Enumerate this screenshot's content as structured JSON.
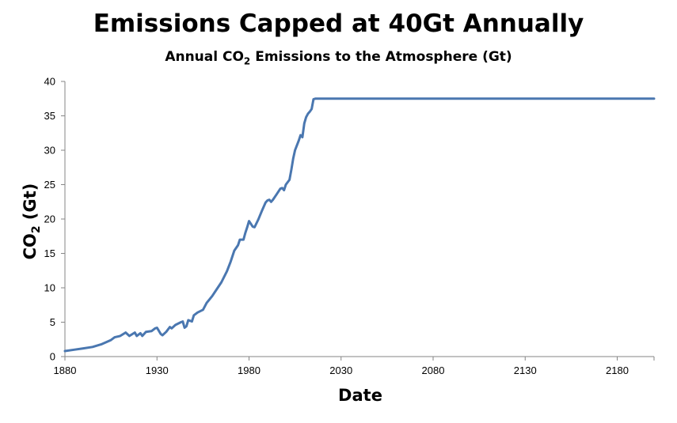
{
  "chart_data": {
    "type": "line",
    "title": "Emissions Capped at 40Gt Annually",
    "subtitle": {
      "main": "Annual CO",
      "sub": "2",
      "rest": " Emissions to the Atmosphere (Gt)"
    },
    "xlabel": "Date",
    "ylabel": {
      "main": "CO",
      "sub": "2",
      "rest": " (Gt)"
    },
    "xlim": [
      1880,
      2200
    ],
    "ylim": [
      0,
      40
    ],
    "x_ticks": [
      1880,
      1930,
      1980,
      2030,
      2080,
      2130,
      2180
    ],
    "y_ticks": [
      0,
      5,
      10,
      15,
      20,
      25,
      30,
      35,
      40
    ],
    "grid": false,
    "legend": "none",
    "series": [
      {
        "color": "#4a77b0",
        "points": [
          [
            1880,
            0.8
          ],
          [
            1885,
            1.0
          ],
          [
            1890,
            1.2
          ],
          [
            1895,
            1.4
          ],
          [
            1900,
            1.8
          ],
          [
            1905,
            2.4
          ],
          [
            1907,
            2.8
          ],
          [
            1910,
            3.0
          ],
          [
            1913,
            3.5
          ],
          [
            1915,
            3.0
          ],
          [
            1918,
            3.5
          ],
          [
            1919,
            3.0
          ],
          [
            1921,
            3.4
          ],
          [
            1922,
            3.0
          ],
          [
            1924,
            3.6
          ],
          [
            1927,
            3.7
          ],
          [
            1929,
            4.1
          ],
          [
            1930,
            4.2
          ],
          [
            1932,
            3.3
          ],
          [
            1933,
            3.1
          ],
          [
            1935,
            3.6
          ],
          [
            1937,
            4.3
          ],
          [
            1938,
            4.1
          ],
          [
            1940,
            4.6
          ],
          [
            1943,
            5.0
          ],
          [
            1944,
            5.1
          ],
          [
            1945,
            4.2
          ],
          [
            1946,
            4.4
          ],
          [
            1947,
            5.3
          ],
          [
            1949,
            5.1
          ],
          [
            1950,
            6.0
          ],
          [
            1952,
            6.4
          ],
          [
            1955,
            6.8
          ],
          [
            1957,
            7.8
          ],
          [
            1960,
            8.8
          ],
          [
            1962,
            9.6
          ],
          [
            1965,
            10.8
          ],
          [
            1968,
            12.4
          ],
          [
            1970,
            13.8
          ],
          [
            1972,
            15.4
          ],
          [
            1974,
            16.2
          ],
          [
            1975,
            17.0
          ],
          [
            1977,
            17.0
          ],
          [
            1978,
            18.0
          ],
          [
            1979,
            18.8
          ],
          [
            1980,
            19.7
          ],
          [
            1981,
            19.3
          ],
          [
            1982,
            18.9
          ],
          [
            1983,
            18.8
          ],
          [
            1985,
            19.9
          ],
          [
            1987,
            21.2
          ],
          [
            1989,
            22.4
          ],
          [
            1990,
            22.7
          ],
          [
            1991,
            22.8
          ],
          [
            1992,
            22.5
          ],
          [
            1993,
            22.8
          ],
          [
            1995,
            23.6
          ],
          [
            1997,
            24.4
          ],
          [
            1998,
            24.5
          ],
          [
            1999,
            24.2
          ],
          [
            2000,
            25.0
          ],
          [
            2002,
            25.7
          ],
          [
            2003,
            27.2
          ],
          [
            2004,
            28.8
          ],
          [
            2005,
            30.0
          ],
          [
            2007,
            31.4
          ],
          [
            2008,
            32.2
          ],
          [
            2009,
            31.9
          ],
          [
            2010,
            33.9
          ],
          [
            2011,
            34.8
          ],
          [
            2012,
            35.3
          ],
          [
            2013,
            35.6
          ],
          [
            2014,
            36.0
          ],
          [
            2015,
            37.4
          ],
          [
            2016,
            37.5
          ],
          [
            2200,
            37.5
          ]
        ]
      }
    ]
  }
}
